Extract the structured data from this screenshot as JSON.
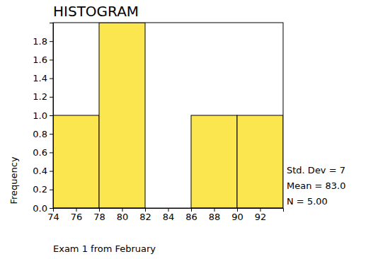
{
  "chart_data": {
    "type": "histogram",
    "title": "HISTOGRAM",
    "x_label": "Exam 1 from February",
    "y_label": "Frequency",
    "bins": [
      74,
      78,
      82,
      86,
      90,
      94
    ],
    "counts": [
      1,
      2,
      0,
      1,
      1
    ],
    "color": "#fbe64f",
    "xlim": [
      74,
      94
    ],
    "xticks": [
      74,
      76,
      78,
      80,
      82,
      84,
      86,
      88,
      90,
      92
    ],
    "ylim": [
      0,
      2
    ],
    "yticks": [
      {
        "value": 0,
        "label": "0.0"
      },
      0.2,
      0.4,
      0.6,
      0.8,
      {
        "value": 1,
        "label": "1.0"
      },
      1.2,
      1.4,
      1.6,
      1.8
    ],
    "grid": false,
    "annotations": [
      "Std. Dev = 7",
      "Mean = 83.0",
      "N = 5.00"
    ]
  }
}
